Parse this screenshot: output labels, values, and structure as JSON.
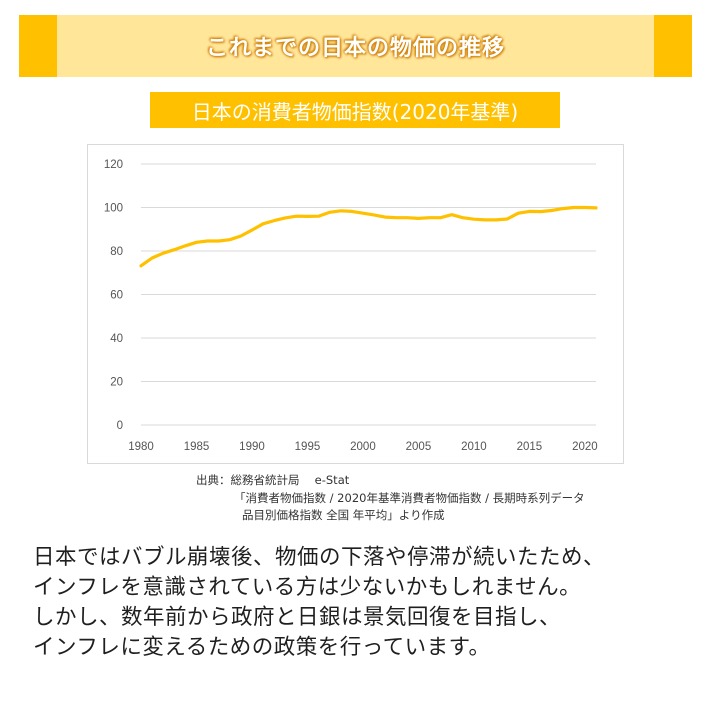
{
  "header": {
    "title": "これまでの日本の物価の推移"
  },
  "chart_title": "日本の消費者物価指数(2020年基準)",
  "chart_data": {
    "type": "line",
    "title": "日本の消費者物価指数(2020年基準)",
    "xlabel": "",
    "ylabel": "",
    "xlim": [
      1980,
      2021
    ],
    "ylim": [
      0,
      120
    ],
    "yticks": [
      0,
      20,
      40,
      60,
      80,
      100,
      120
    ],
    "xticks": [
      1980,
      1985,
      1990,
      1995,
      2000,
      2005,
      2010,
      2015,
      2020
    ],
    "grid": true,
    "legend": "none",
    "color": "#ffc000",
    "x": [
      1980,
      1981,
      1982,
      1983,
      1984,
      1985,
      1986,
      1987,
      1988,
      1989,
      1990,
      1991,
      1992,
      1993,
      1994,
      1995,
      1996,
      1997,
      1998,
      1999,
      2000,
      2001,
      2002,
      2003,
      2004,
      2005,
      2006,
      2007,
      2008,
      2009,
      2010,
      2011,
      2012,
      2013,
      2014,
      2015,
      2016,
      2017,
      2018,
      2019,
      2020,
      2021
    ],
    "series": [
      {
        "values": [
          73.2,
          76.8,
          79.0,
          80.6,
          82.4,
          84.0,
          84.6,
          84.6,
          85.2,
          86.9,
          89.6,
          92.5,
          94.0,
          95.2,
          96.0,
          95.9,
          96.0,
          97.8,
          98.5,
          98.2,
          97.4,
          96.6,
          95.6,
          95.3,
          95.3,
          95.0,
          95.3,
          95.3,
          96.7,
          95.3,
          94.6,
          94.3,
          94.3,
          94.7,
          97.4,
          98.2,
          98.1,
          98.6,
          99.5,
          100.0,
          100.0,
          99.8
        ]
      }
    ]
  },
  "source": {
    "line1": "出典：総務省統計局　 e-Stat",
    "line2": "「消費者物価指数 / 2020年基準消費者物価指数 / 長期時系列データ",
    "line3": "品目別価格指数 全国 年平均」より作成"
  },
  "body": {
    "line1": "日本ではバブル崩壊後、物価の下落や停滞が続いたため、",
    "line2": "インフレを意識されている方は少ないかもしれません。",
    "line3": "しかし、数年前から政府と日銀は景気回復を目指し、",
    "line4": "インフレに変えるための政策を行っています。"
  }
}
